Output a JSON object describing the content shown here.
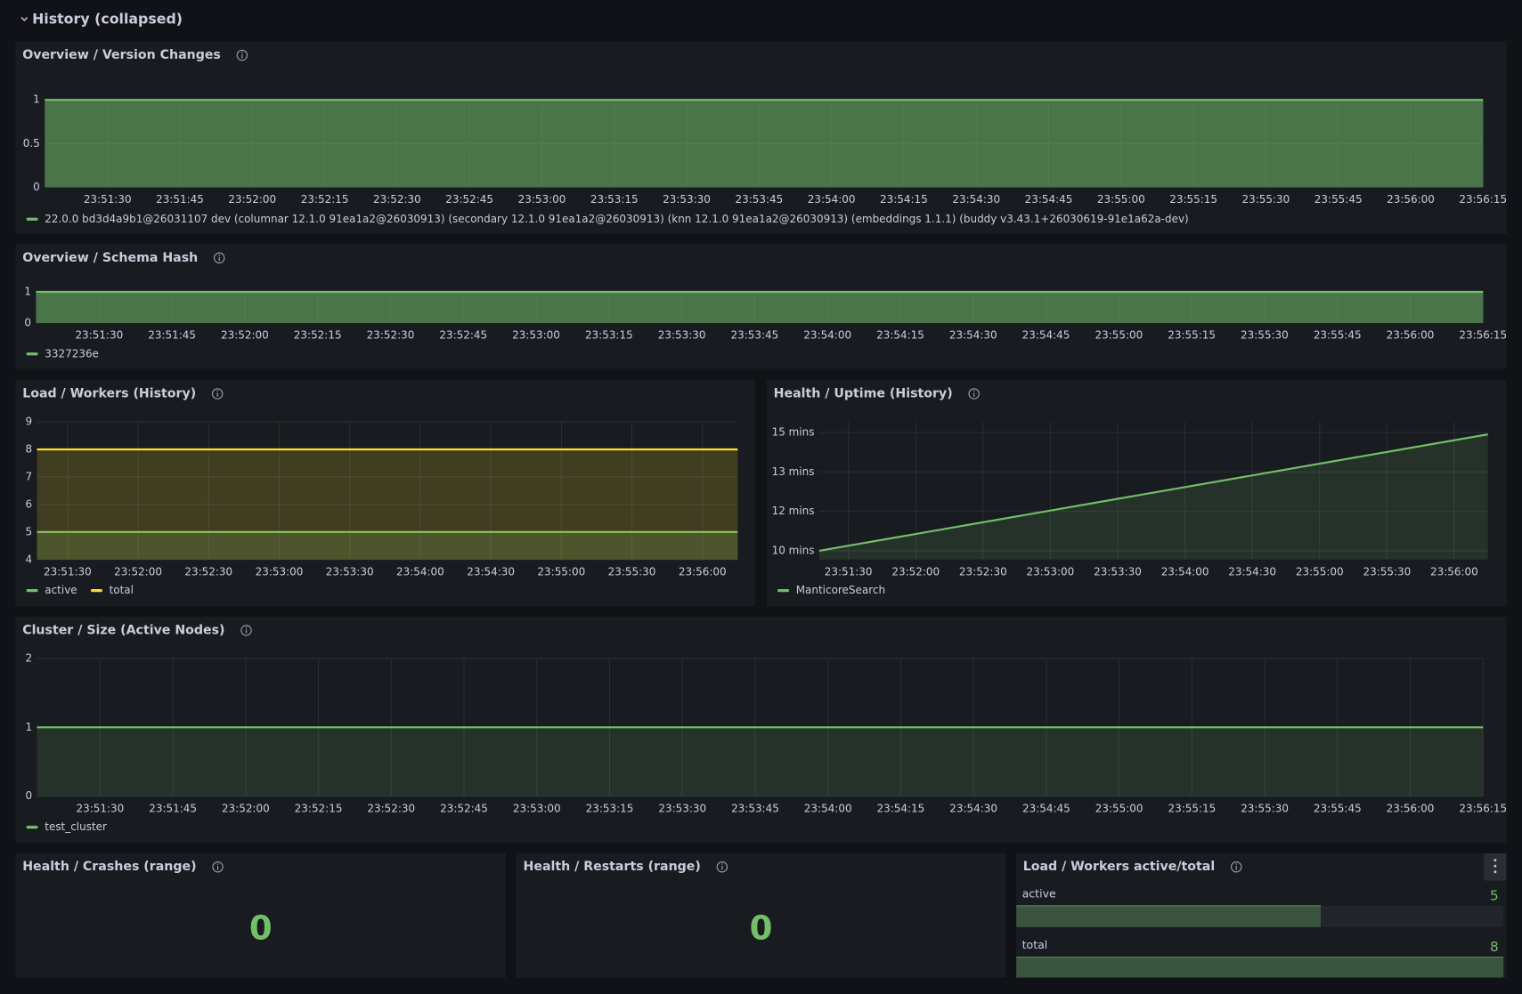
{
  "row_title": "History (collapsed)",
  "panels": [
    {
      "type": "area",
      "title": "Overview / Version Changes",
      "x": [
        "23:51:17",
        "23:56:15"
      ],
      "xlim": [
        "23:51:17",
        "23:56:15"
      ],
      "xticks": [
        "23:51:30",
        "23:51:45",
        "23:52:00",
        "23:52:15",
        "23:52:30",
        "23:52:45",
        "23:53:00",
        "23:53:15",
        "23:53:30",
        "23:53:45",
        "23:54:00",
        "23:54:15",
        "23:54:30",
        "23:54:45",
        "23:55:00",
        "23:55:15",
        "23:55:30",
        "23:55:45",
        "23:56:00",
        "23:56:15"
      ],
      "ylim": [
        0,
        1
      ],
      "yticks": [
        0,
        0.5,
        1
      ],
      "grid": true,
      "series": [
        {
          "name": "22.0.0 bd3d4a9b1@26031107 dev (columnar 12.1.0 91ea1a2@26030913) (secondary 12.1.0 91ea1a2@26030913) (knn 12.1.0 91ea1a2@26030913) (embeddings 1.1.1) (buddy v3.43.1+26030619-91e1a62a-dev)",
          "color": "#73bf69",
          "values": [
            1,
            1
          ]
        }
      ]
    },
    {
      "type": "area",
      "title": "Overview / Schema Hash",
      "x": [
        "23:51:17",
        "23:56:15"
      ],
      "xlim": [
        "23:51:17",
        "23:56:15"
      ],
      "xticks": [
        "23:51:30",
        "23:51:45",
        "23:52:00",
        "23:52:15",
        "23:52:30",
        "23:52:45",
        "23:53:00",
        "23:53:15",
        "23:53:30",
        "23:53:45",
        "23:54:00",
        "23:54:15",
        "23:54:30",
        "23:54:45",
        "23:55:00",
        "23:55:15",
        "23:55:30",
        "23:55:45",
        "23:56:00",
        "23:56:15"
      ],
      "ylim": [
        0,
        1
      ],
      "yticks": [
        0,
        1
      ],
      "grid": true,
      "series": [
        {
          "name": "3327236e",
          "color": "#73bf69",
          "values": [
            1,
            1
          ]
        }
      ]
    },
    {
      "type": "area",
      "title": "Load / Workers (History)",
      "x": [
        "23:51:17",
        "23:56:15"
      ],
      "xlim": [
        "23:51:17",
        "23:56:15"
      ],
      "xticks": [
        "23:51:30",
        "23:52:00",
        "23:52:30",
        "23:53:00",
        "23:53:30",
        "23:54:00",
        "23:54:30",
        "23:55:00",
        "23:55:30",
        "23:56:00"
      ],
      "ylim": [
        4,
        9
      ],
      "yticks": [
        4,
        5,
        6,
        7,
        8,
        9
      ],
      "grid": true,
      "series": [
        {
          "name": "active",
          "color": "#73bf69",
          "values": [
            5,
            5
          ]
        },
        {
          "name": "total",
          "color": "#fade2a",
          "values": [
            8,
            8
          ]
        }
      ]
    },
    {
      "type": "area",
      "title": "Health / Uptime (History)",
      "x": [
        "23:51:17",
        "23:56:15"
      ],
      "xlim": [
        "23:51:17",
        "23:56:15"
      ],
      "xticks": [
        "23:51:30",
        "23:52:00",
        "23:52:30",
        "23:53:00",
        "23:53:30",
        "23:54:00",
        "23:54:30",
        "23:55:00",
        "23:55:30",
        "23:56:00"
      ],
      "ylim": [
        9.63,
        15.45
      ],
      "yticks": [
        {
          "value": 10,
          "label": "10 mins"
        },
        {
          "value": 11.667,
          "label": "12 mins"
        },
        {
          "value": 13.333,
          "label": "13 mins"
        },
        {
          "value": 15,
          "label": "15 mins"
        }
      ],
      "grid": true,
      "series": [
        {
          "name": "ManticoreSearch",
          "color": "#73bf69",
          "values": [
            10,
            14.92
          ]
        }
      ]
    },
    {
      "type": "area",
      "title": "Cluster / Size (Active Nodes)",
      "x": [
        "23:51:17",
        "23:56:15"
      ],
      "xlim": [
        "23:51:17",
        "23:56:15"
      ],
      "xticks": [
        "23:51:30",
        "23:51:45",
        "23:52:00",
        "23:52:15",
        "23:52:30",
        "23:52:45",
        "23:53:00",
        "23:53:15",
        "23:53:30",
        "23:53:45",
        "23:54:00",
        "23:54:15",
        "23:54:30",
        "23:54:45",
        "23:55:00",
        "23:55:15",
        "23:55:30",
        "23:55:45",
        "23:56:00",
        "23:56:15"
      ],
      "ylim": [
        0,
        2
      ],
      "yticks": [
        0,
        1,
        2
      ],
      "grid": true,
      "series": [
        {
          "name": "test_cluster",
          "color": "#73bf69",
          "values": [
            1,
            1
          ]
        }
      ]
    },
    {
      "type": "stat",
      "title": "Health / Crashes (range)",
      "value": 0,
      "color": "#73bf69"
    },
    {
      "type": "stat",
      "title": "Health / Restarts (range)",
      "value": 0,
      "color": "#73bf69"
    },
    {
      "type": "bargauge",
      "title": "Load / Workers active/total",
      "color": "#73bf69",
      "items": [
        {
          "name": "active",
          "value": 5
        },
        {
          "name": "total",
          "value": 8
        }
      ]
    }
  ]
}
